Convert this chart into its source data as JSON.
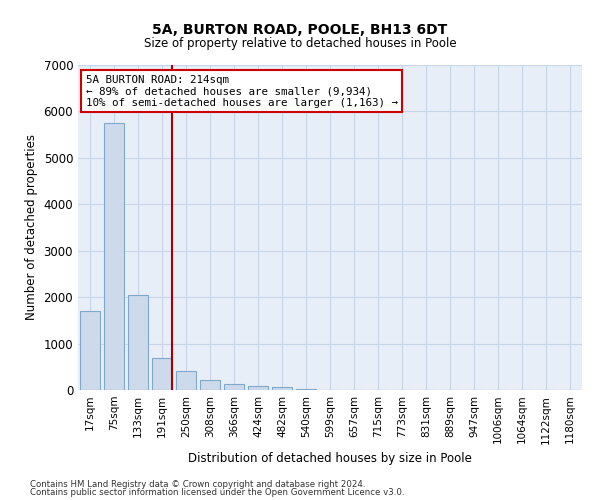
{
  "title1": "5A, BURTON ROAD, POOLE, BH13 6DT",
  "title2": "Size of property relative to detached houses in Poole",
  "xlabel": "Distribution of detached houses by size in Poole",
  "ylabel": "Number of detached properties",
  "categories": [
    "17sqm",
    "75sqm",
    "133sqm",
    "191sqm",
    "250sqm",
    "308sqm",
    "366sqm",
    "424sqm",
    "482sqm",
    "540sqm",
    "599sqm",
    "657sqm",
    "715sqm",
    "773sqm",
    "831sqm",
    "889sqm",
    "947sqm",
    "1006sqm",
    "1064sqm",
    "1122sqm",
    "1180sqm"
  ],
  "values": [
    1700,
    5750,
    2050,
    700,
    420,
    220,
    130,
    80,
    55,
    30,
    0,
    0,
    0,
    0,
    0,
    0,
    0,
    0,
    0,
    0,
    0
  ],
  "bar_color": "#ccdaeb",
  "bar_edge_color": "#7fa8c9",
  "highlight_line_color": "#aa0000",
  "annotation_text": "5A BURTON ROAD: 214sqm\n← 89% of detached houses are smaller (9,934)\n10% of semi-detached houses are larger (1,163) →",
  "annotation_box_facecolor": "#ffffff",
  "annotation_box_edgecolor": "#cc0000",
  "ylim": [
    0,
    7000
  ],
  "yticks": [
    0,
    1000,
    2000,
    3000,
    4000,
    5000,
    6000,
    7000
  ],
  "grid_color": "#c8d4e8",
  "bg_color": "#e8eef8",
  "footnote1": "Contains HM Land Registry data © Crown copyright and database right 2024.",
  "footnote2": "Contains public sector information licensed under the Open Government Licence v3.0."
}
